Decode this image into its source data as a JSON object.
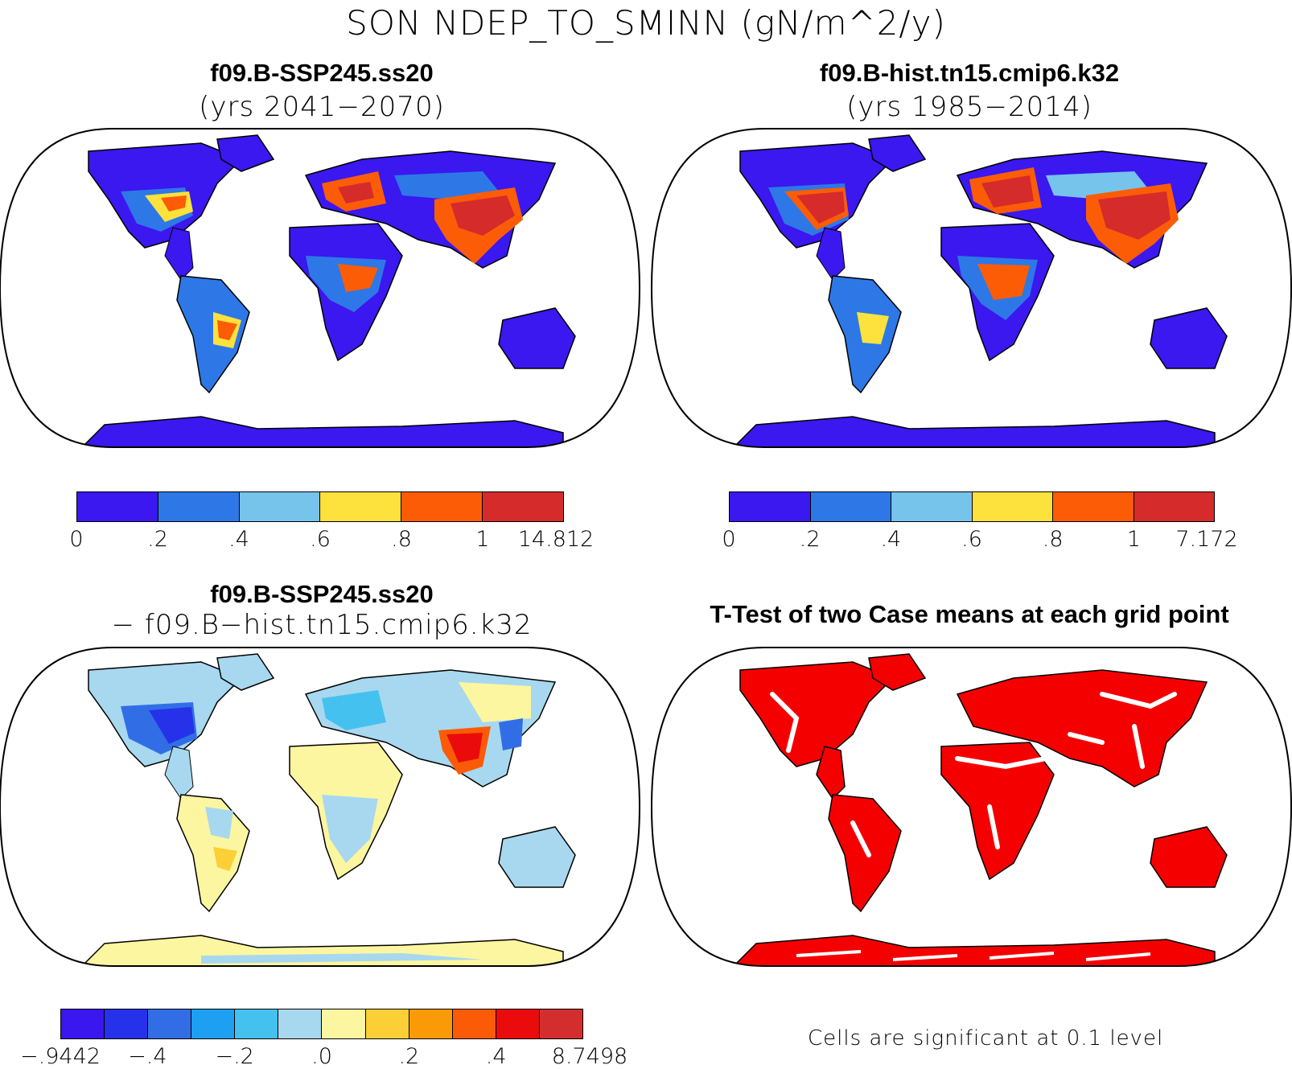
{
  "title": "SON NDEP_TO_SMINN (gN/m^2/y)",
  "panels": {
    "top_left": {
      "case": "f09.B-SSP245.ss20",
      "subtitle": "(yrs 2041−2070)"
    },
    "top_right": {
      "case": "f09.B-hist.tn15.cmip6.k32",
      "subtitle": "(yrs 1985−2014)"
    },
    "bottom_left": {
      "case": "f09.B-SSP245.ss20",
      "subtitle": "− f09.B−hist.tn15.cmip6.k32"
    },
    "bottom_right": {
      "title": "T-Test of two Case means at each grid point",
      "note": "Cells are significant at 0.1 level"
    }
  },
  "colorbars": {
    "top_left": {
      "colors": [
        "#3b17f0",
        "#2d78e6",
        "#76c3ec",
        "#fde13d",
        "#fd5c07",
        "#d52b2b"
      ],
      "labels": [
        "0",
        ".2",
        ".4",
        ".6",
        ".8",
        "1",
        "14.812"
      ]
    },
    "top_right": {
      "colors": [
        "#3b17f0",
        "#2d78e6",
        "#76c3ec",
        "#fde13d",
        "#fd5c07",
        "#d52b2b"
      ],
      "labels": [
        "0",
        ".2",
        ".4",
        ".6",
        ".8",
        "1",
        "7.172"
      ]
    },
    "bottom_left": {
      "colors": [
        "#3a16ef",
        "#2632ea",
        "#316ee6",
        "#1da0f2",
        "#45c1ef",
        "#a8d8ef",
        "#fdf6a0",
        "#fccf36",
        "#fb9a07",
        "#fb5a06",
        "#ea0c0c",
        "#d42d2d"
      ],
      "labels": [
        "−.9442",
        "−.4",
        "−.2",
        ".0",
        ".2",
        ".4",
        "8.7498"
      ]
    }
  },
  "map_fill_colors": {
    "ocean": "#ffffff",
    "coast": "#000000",
    "significant": "#f50000"
  }
}
